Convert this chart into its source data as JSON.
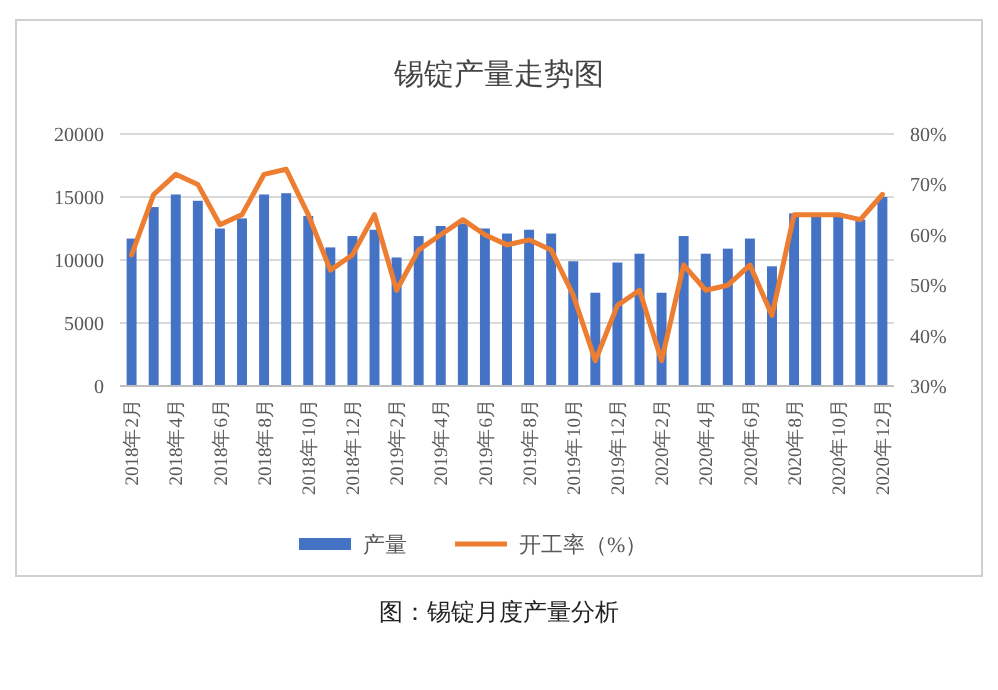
{
  "chart_data": {
    "type": "bar",
    "title": "锡锭产量走势图",
    "categories": [
      "2018年2月",
      null,
      "2018年4月",
      null,
      "2018年6月",
      null,
      "2018年8月",
      null,
      "2018年10月",
      null,
      "2018年12月",
      null,
      "2019年2月",
      null,
      "2019年4月",
      null,
      "2019年6月",
      null,
      "2019年8月",
      null,
      "2019年10月",
      null,
      "2019年12月",
      null,
      "2020年2月",
      null,
      "2020年4月",
      null,
      "2020年6月",
      null,
      "2020年8月",
      null,
      "2020年10月",
      null,
      "2020年12月"
    ],
    "series": [
      {
        "name": "产量",
        "color": "#4472c4",
        "values": [
          11700,
          14200,
          15200,
          14700,
          12500,
          13300,
          15200,
          15300,
          13500,
          11000,
          11900,
          12400,
          10200,
          11900,
          12700,
          12900,
          12500,
          12100,
          12400,
          12100,
          9900,
          7400,
          9800,
          10500,
          7400,
          11900,
          10500,
          10900,
          11700,
          9500,
          13700,
          13700,
          13700,
          13200,
          15000
        ]
      },
      {
        "name": "开工率（%）",
        "type": "line",
        "axis": "y2",
        "color": "#ed7d31",
        "values": [
          56,
          68,
          72,
          70,
          62,
          64,
          72,
          73,
          64,
          53,
          56,
          64,
          49,
          57,
          60,
          63,
          60,
          58,
          59,
          57,
          48,
          35,
          46,
          49,
          35,
          54,
          49,
          50,
          54,
          44,
          64,
          64,
          64,
          63,
          68
        ]
      }
    ],
    "ylim": [
      0,
      20000
    ],
    "yticks": [
      0,
      5000,
      10000,
      15000,
      20000
    ],
    "y2lim": [
      30,
      80
    ],
    "y2ticks": [
      {
        "value": 30,
        "label": "30%"
      },
      {
        "value": 40,
        "label": "40%"
      },
      {
        "value": 50,
        "label": "50%"
      },
      {
        "value": 60,
        "label": "60%"
      },
      {
        "value": 70,
        "label": "70%"
      },
      {
        "value": 80,
        "label": "80%"
      }
    ],
    "grid": "y",
    "legend": "bottom",
    "marker": "none",
    "line_style": "solid",
    "annotations": [
      "图：锡锭月度产量分析"
    ]
  }
}
